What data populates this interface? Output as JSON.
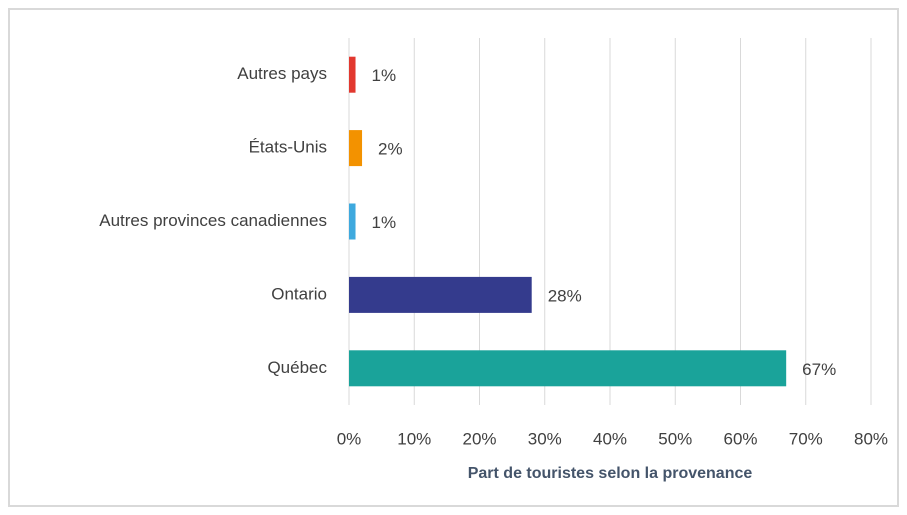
{
  "chart_data": {
    "type": "bar",
    "orientation": "horizontal",
    "x_label": "Part de touristes selon la provenance",
    "categories": [
      "Autres pays",
      "États-Unis",
      "Autres provinces canadiennes",
      "Ontario",
      "Québec"
    ],
    "values": [
      1,
      2,
      1,
      28,
      67
    ],
    "value_labels": [
      "1%",
      "2%",
      "1%",
      "28%",
      "67%"
    ],
    "colors": [
      "#e2382f",
      "#f39200",
      "#3ea9de",
      "#343b8d",
      "#1aa39a"
    ],
    "xlim": [
      0,
      80
    ],
    "xticks": [
      {
        "value": 0,
        "label": "0%"
      },
      {
        "value": 10,
        "label": "10%"
      },
      {
        "value": 20,
        "label": "20%"
      },
      {
        "value": 30,
        "label": "30%"
      },
      {
        "value": 40,
        "label": "40%"
      },
      {
        "value": 50,
        "label": "50%"
      },
      {
        "value": 60,
        "label": "60%"
      },
      {
        "value": 70,
        "label": "70%"
      },
      {
        "value": 80,
        "label": "80%"
      }
    ],
    "grid": true
  }
}
